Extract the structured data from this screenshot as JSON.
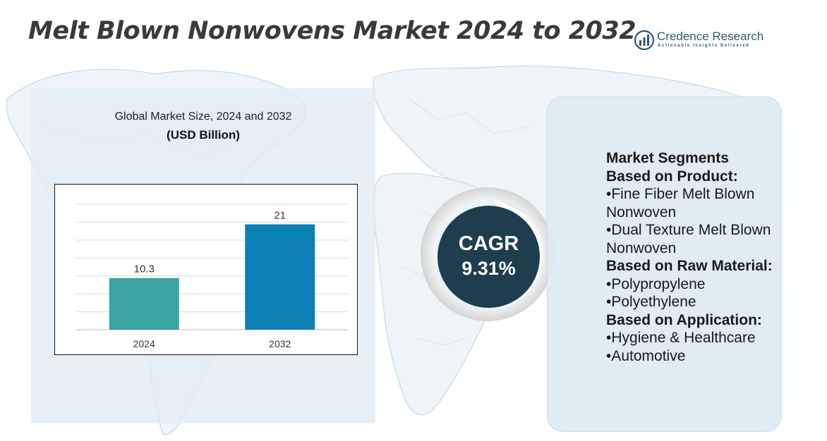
{
  "title": "Melt Blown Nonwovens Market 2024 to 2032",
  "logo": {
    "name": "Credence Research",
    "tagline": "Actionable Insights Delivered",
    "color": "#2b5a7a"
  },
  "chart_heading": "Global Market Size, 2024 and 2032",
  "chart_unit": "(USD Billion)",
  "chart_data": {
    "type": "bar",
    "title": "Global Market Size, 2024 and 2032",
    "ylabel": "(USD Billion)",
    "xlabel": "",
    "categories": [
      "2024",
      "2032"
    ],
    "values": [
      10.3,
      21
    ],
    "value_labels": [
      "10.3",
      "21"
    ],
    "colors": [
      "#3aa3a3",
      "#0b80b4"
    ],
    "ylim": [
      0,
      25
    ],
    "grid": true,
    "legend": "none"
  },
  "cagr": {
    "label": "CAGR",
    "value": "9.31%",
    "color": "#1e3e4f"
  },
  "segments": {
    "heading": "Market Segments",
    "groups": [
      {
        "title": "Based on Product:",
        "items": [
          "•Fine Fiber Melt Blown Nonwoven",
          "•Dual Texture Melt Blown Nonwoven"
        ]
      },
      {
        "title": "Based on Raw Material:",
        "items": [
          "•Polypropylene",
          "•Polyethylene"
        ]
      },
      {
        "title": "Based on Application:",
        "items": [
          "•Hygiene & Healthcare",
          "•Automotive"
        ]
      }
    ]
  }
}
